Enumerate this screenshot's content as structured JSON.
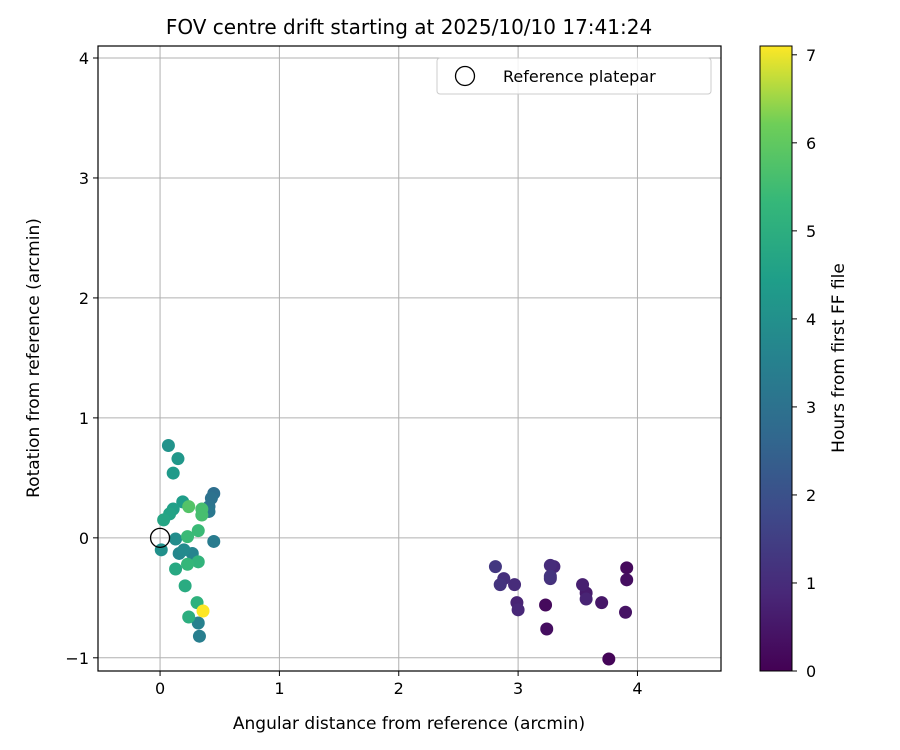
{
  "chart_data": {
    "type": "scatter",
    "title": "FOV centre drift starting at 2025/10/10 17:41:24",
    "xlabel": "Angular distance from reference (arcmin)",
    "ylabel": "Rotation from reference (arcmin)",
    "xlim": [
      -0.52,
      4.7
    ],
    "ylim": [
      -1.11,
      4.1
    ],
    "xticks": [
      0,
      1,
      2,
      3,
      4
    ],
    "xtick_labels": [
      "0",
      "1",
      "2",
      "3",
      "4"
    ],
    "yticks": [
      -1,
      0,
      1,
      2,
      3,
      4
    ],
    "ytick_labels": [
      "−1",
      "0",
      "1",
      "2",
      "3",
      "4"
    ],
    "grid": true,
    "colormap": "viridis",
    "colorbar": {
      "label": "Hours from first FF file",
      "range": [
        0,
        7.1
      ],
      "ticks": [
        0,
        1,
        2,
        3,
        4,
        5,
        6,
        7
      ],
      "tick_labels": [
        "0",
        "1",
        "2",
        "3",
        "4",
        "5",
        "6",
        "7"
      ]
    },
    "legend": {
      "position": "top-right",
      "entries": [
        {
          "label": "Reference platepar",
          "marker": "open-circle"
        }
      ]
    },
    "reference_point": {
      "x": 0,
      "y": 0
    },
    "points": [
      {
        "x": 3.76,
        "y": -1.01,
        "c": 0.1
      },
      {
        "x": 3.91,
        "y": -0.25,
        "c": 0.2
      },
      {
        "x": 3.91,
        "y": -0.35,
        "c": 0.3
      },
      {
        "x": 3.9,
        "y": -0.62,
        "c": 0.4
      },
      {
        "x": 3.7,
        "y": -0.54,
        "c": 0.5
      },
      {
        "x": 3.57,
        "y": -0.46,
        "c": 0.6
      },
      {
        "x": 3.54,
        "y": -0.39,
        "c": 0.7
      },
      {
        "x": 3.57,
        "y": -0.51,
        "c": 0.8
      },
      {
        "x": 3.3,
        "y": -0.24,
        "c": 0.9
      },
      {
        "x": 3.27,
        "y": -0.23,
        "c": 1.0
      },
      {
        "x": 3.27,
        "y": -0.34,
        "c": 1.1
      },
      {
        "x": 3.27,
        "y": -0.32,
        "c": 1.2
      },
      {
        "x": 3.23,
        "y": -0.56,
        "c": 0.2
      },
      {
        "x": 3.24,
        "y": -0.76,
        "c": 0.3
      },
      {
        "x": 2.99,
        "y": -0.54,
        "c": 0.8
      },
      {
        "x": 3.0,
        "y": -0.6,
        "c": 0.9
      },
      {
        "x": 2.97,
        "y": -0.39,
        "c": 1.0
      },
      {
        "x": 2.88,
        "y": -0.34,
        "c": 1.1
      },
      {
        "x": 2.85,
        "y": -0.39,
        "c": 1.2
      },
      {
        "x": 2.81,
        "y": -0.24,
        "c": 1.3
      },
      {
        "x": 0.45,
        "y": 0.37,
        "c": 2.9
      },
      {
        "x": 0.43,
        "y": 0.33,
        "c": 3.0
      },
      {
        "x": 0.41,
        "y": 0.26,
        "c": 3.1
      },
      {
        "x": 0.41,
        "y": 0.22,
        "c": 3.2
      },
      {
        "x": 0.45,
        "y": -0.03,
        "c": 3.3
      },
      {
        "x": 0.33,
        "y": -0.82,
        "c": 3.4
      },
      {
        "x": 0.32,
        "y": -0.71,
        "c": 3.5
      },
      {
        "x": 0.27,
        "y": -0.13,
        "c": 3.6
      },
      {
        "x": 0.16,
        "y": -0.13,
        "c": 3.7
      },
      {
        "x": 0.2,
        "y": -0.1,
        "c": 3.8
      },
      {
        "x": 0.13,
        "y": -0.01,
        "c": 3.9
      },
      {
        "x": 0.01,
        "y": -0.1,
        "c": 4.0
      },
      {
        "x": 0.07,
        "y": 0.77,
        "c": 4.1
      },
      {
        "x": 0.15,
        "y": 0.66,
        "c": 4.2
      },
      {
        "x": 0.11,
        "y": 0.54,
        "c": 4.3
      },
      {
        "x": 0.19,
        "y": 0.3,
        "c": 4.4
      },
      {
        "x": 0.11,
        "y": 0.24,
        "c": 4.5
      },
      {
        "x": 0.08,
        "y": 0.2,
        "c": 4.6
      },
      {
        "x": 0.03,
        "y": 0.15,
        "c": 4.7
      },
      {
        "x": 0.13,
        "y": -0.26,
        "c": 4.8
      },
      {
        "x": 0.21,
        "y": -0.4,
        "c": 4.9
      },
      {
        "x": 0.24,
        "y": -0.66,
        "c": 5.0
      },
      {
        "x": 0.31,
        "y": -0.54,
        "c": 5.1
      },
      {
        "x": 0.32,
        "y": -0.2,
        "c": 5.2
      },
      {
        "x": 0.23,
        "y": -0.22,
        "c": 5.3
      },
      {
        "x": 0.23,
        "y": 0.01,
        "c": 5.4
      },
      {
        "x": 0.32,
        "y": 0.06,
        "c": 5.4
      },
      {
        "x": 0.35,
        "y": 0.24,
        "c": 5.6
      },
      {
        "x": 0.35,
        "y": 0.19,
        "c": 5.6
      },
      {
        "x": 0.24,
        "y": 0.26,
        "c": 5.8
      },
      {
        "x": 0.36,
        "y": -0.61,
        "c": 7.1
      }
    ]
  }
}
